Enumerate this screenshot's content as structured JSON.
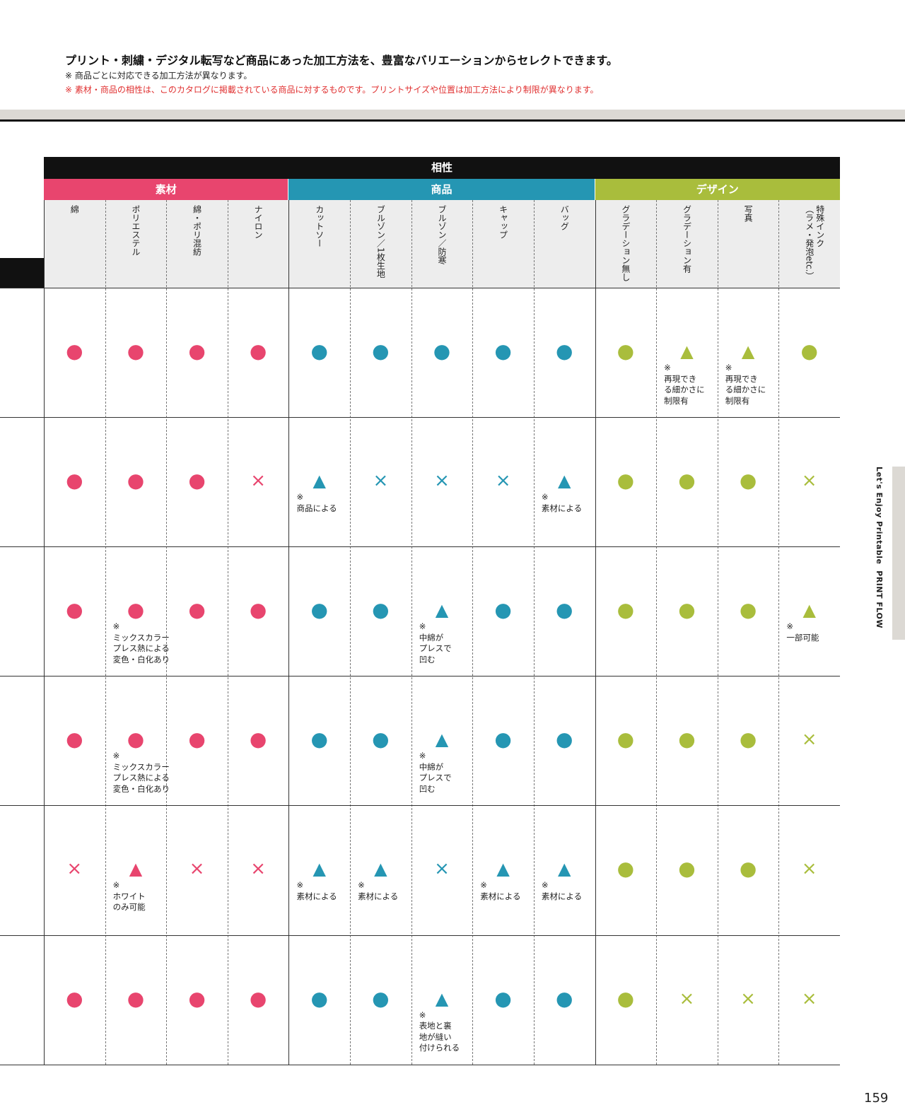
{
  "header": {
    "title": "プリント・刺繍・デジタル転写など商品にあった加工方法を、豊富なバリエーションからセレクトできます。",
    "notes": [
      "※ 商品ごとに対応できる加工方法が異なります。",
      "※ 素材・商品の相性は、このカタログに掲載されている商品に対するものです。プリントサイズや位置は加工方法により制限が異なります。"
    ]
  },
  "table": {
    "title": "相性",
    "groups": [
      "素材",
      "商品",
      "デザイン"
    ],
    "columns": [
      "綿",
      "ポリエステル",
      "綿・ポリ混紡",
      "ナイロン",
      "カットソー",
      "ブルゾン／1枚生地",
      "ブルゾン／防寒",
      "キャップ",
      "バッグ",
      "グラデーション無し",
      "グラデーション有",
      "写真",
      "特殊インク\n（ラメ・発泡etc.）"
    ],
    "rows": [
      [
        {
          "mark": "●"
        },
        {
          "mark": "●"
        },
        {
          "mark": "●"
        },
        {
          "mark": "●"
        },
        {
          "mark": "●"
        },
        {
          "mark": "●"
        },
        {
          "mark": "●"
        },
        {
          "mark": "●"
        },
        {
          "mark": "●"
        },
        {
          "mark": "●"
        },
        {
          "mark": "▲",
          "note": "※\n再現でき\nる細かさに\n制限有"
        },
        {
          "mark": "▲",
          "note": "※\n再現でき\nる細かさに\n制限有"
        },
        {
          "mark": "●"
        }
      ],
      [
        {
          "mark": "●"
        },
        {
          "mark": "●"
        },
        {
          "mark": "●"
        },
        {
          "mark": "×"
        },
        {
          "mark": "▲",
          "note": "※\n商品による"
        },
        {
          "mark": "×"
        },
        {
          "mark": "×"
        },
        {
          "mark": "×"
        },
        {
          "mark": "▲",
          "note": "※\n素材による"
        },
        {
          "mark": "●"
        },
        {
          "mark": "●"
        },
        {
          "mark": "●"
        },
        {
          "mark": "×"
        }
      ],
      [
        {
          "mark": "●"
        },
        {
          "mark": "●",
          "note": "※\nミックスカラー\nプレス熱による\n変色・白化あり"
        },
        {
          "mark": "●"
        },
        {
          "mark": "●"
        },
        {
          "mark": "●"
        },
        {
          "mark": "●"
        },
        {
          "mark": "▲",
          "note": "※\n中綿が\nプレスで\n凹む"
        },
        {
          "mark": "●"
        },
        {
          "mark": "●"
        },
        {
          "mark": "●"
        },
        {
          "mark": "●"
        },
        {
          "mark": "●"
        },
        {
          "mark": "▲",
          "note": "※\n一部可能"
        }
      ],
      [
        {
          "mark": "●"
        },
        {
          "mark": "●",
          "note": "※\nミックスカラー\nプレス熱による\n変色・白化あり"
        },
        {
          "mark": "●"
        },
        {
          "mark": "●"
        },
        {
          "mark": "●"
        },
        {
          "mark": "●"
        },
        {
          "mark": "▲",
          "note": "※\n中綿が\nプレスで\n凹む"
        },
        {
          "mark": "●"
        },
        {
          "mark": "●"
        },
        {
          "mark": "●"
        },
        {
          "mark": "●"
        },
        {
          "mark": "●"
        },
        {
          "mark": "×"
        }
      ],
      [
        {
          "mark": "×"
        },
        {
          "mark": "▲",
          "note": "※\nホワイト\nのみ可能"
        },
        {
          "mark": "×"
        },
        {
          "mark": "×"
        },
        {
          "mark": "▲",
          "note": "※\n素材による"
        },
        {
          "mark": "▲",
          "note": "※\n素材による"
        },
        {
          "mark": "×"
        },
        {
          "mark": "▲",
          "note": "※\n素材による"
        },
        {
          "mark": "▲",
          "note": "※\n素材による"
        },
        {
          "mark": "●"
        },
        {
          "mark": "●"
        },
        {
          "mark": "●"
        },
        {
          "mark": "×"
        }
      ],
      [
        {
          "mark": "●"
        },
        {
          "mark": "●"
        },
        {
          "mark": "●"
        },
        {
          "mark": "●"
        },
        {
          "mark": "●"
        },
        {
          "mark": "●"
        },
        {
          "mark": "▲",
          "note": "※\n表地と裏\n地が縫い\n付けられる"
        },
        {
          "mark": "●"
        },
        {
          "mark": "●"
        },
        {
          "mark": "●"
        },
        {
          "mark": "×"
        },
        {
          "mark": "×"
        },
        {
          "mark": "×"
        }
      ]
    ]
  },
  "side_label": "Let's Enjoy Printable  PRINT FLOW",
  "page_number": "159"
}
